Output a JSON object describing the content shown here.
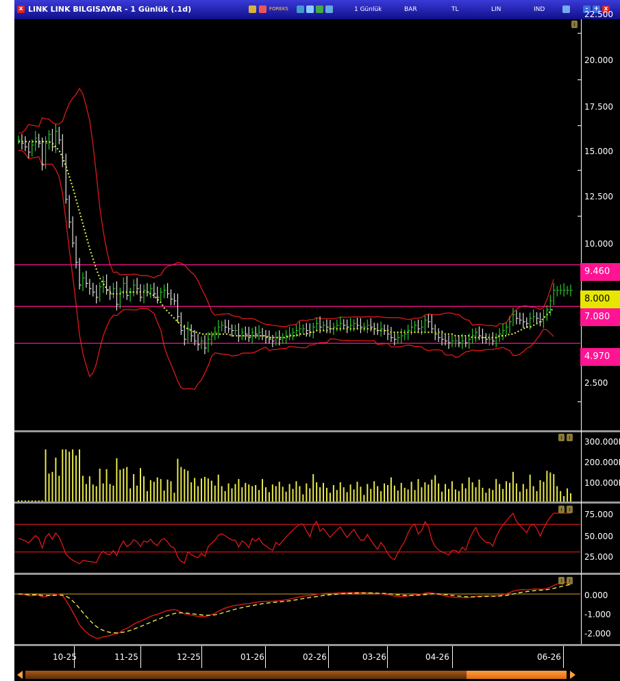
{
  "window": {
    "title": "LINK LINK BILGISAYAR - 1 Günlük (.1d)",
    "menu": [
      "1 Günlük",
      "BAR",
      "TL",
      "LIN",
      "IND"
    ],
    "foreks_label": "FOREKS"
  },
  "date_axis": [
    "10-25",
    "11-25",
    "12-25",
    "01-26",
    "02-26",
    "03-26",
    "04-26",
    "06-26"
  ],
  "price_panel": {
    "scale": [
      "22.500",
      "20.000",
      "17.500",
      "15.000",
      "12.500",
      "10.000",
      "2.500"
    ],
    "levels": [
      {
        "value": "9.460",
        "color": "#ff1493"
      },
      {
        "value": "7.080",
        "color": "#ff1493"
      },
      {
        "value": "4.970",
        "color": "#ff1493"
      }
    ],
    "last_price": {
      "value": "8.000",
      "color": "#ffff00"
    }
  },
  "volume_panel": {
    "scale": [
      "300.000M",
      "200.000M",
      "100.000M"
    ]
  },
  "rsi_panel": {
    "scale": [
      "75.000",
      "50.000",
      "25.000"
    ],
    "levels": [
      70,
      30
    ]
  },
  "macd_panel": {
    "scale": [
      "0.000",
      "-1.000",
      "-2.000"
    ]
  },
  "chart_data": {
    "type": "line",
    "ylim": [
      0,
      23.5
    ],
    "x_count": 164,
    "series": [
      {
        "values": [
          16.6,
          16.4,
          16.2,
          15.9,
          16.3,
          16.7,
          16.4,
          15.2,
          16.4,
          16.9,
          16.2,
          17.1,
          16.6,
          15.4,
          13.2,
          11.9,
          10.7,
          9.6,
          8.3,
          8.7,
          8.4,
          8.1,
          7.9,
          7.6,
          8.2,
          8.5,
          8.0,
          7.8,
          8.1,
          7.2,
          7.9,
          8.4,
          7.7,
          7.9,
          8.3,
          8.1,
          7.6,
          8.0,
          7.9,
          8.1,
          7.8,
          7.6,
          7.9,
          8.0,
          7.8,
          7.5,
          7.4,
          6.5,
          5.7,
          5.2,
          5.8,
          5.4,
          5.1,
          4.9,
          5.1,
          4.7,
          5.2,
          5.4,
          5.6,
          5.9,
          6.0,
          5.9,
          5.8,
          5.7,
          5.7,
          5.4,
          5.6,
          5.5,
          5.3,
          5.6,
          5.5,
          5.6,
          5.4,
          5.3,
          5.2,
          5.1,
          5.3,
          5.2,
          5.3,
          5.4,
          5.5,
          5.6,
          5.7,
          5.8,
          5.8,
          5.7,
          5.6,
          5.9,
          6.1,
          5.9,
          6.0,
          5.9,
          5.8,
          5.9,
          6.0,
          6.1,
          6.0,
          5.9,
          6.0,
          6.1,
          6.0,
          5.9,
          5.9,
          6.0,
          5.9,
          5.8,
          5.7,
          5.8,
          5.7,
          5.5,
          5.3,
          5.2,
          5.3,
          5.4,
          5.5,
          5.7,
          5.9,
          6.0,
          5.8,
          5.9,
          6.3,
          6.2,
          5.8,
          5.5,
          5.3,
          5.2,
          5.1,
          5.0,
          5.1,
          5.1,
          5.0,
          5.1,
          5.0,
          5.2,
          5.4,
          5.6,
          5.4,
          5.3,
          5.2,
          5.2,
          5.1,
          5.3,
          5.5,
          5.7,
          5.9,
          6.2,
          6.6,
          6.4,
          6.3,
          6.2,
          6.1,
          6.4,
          6.5,
          6.4,
          6.2,
          6.5,
          6.9,
          7.4,
          8.0,
          8.0,
          8.0,
          8.0,
          8.0,
          8.0
        ]
      },
      {
        "values": [
          16.5,
          16.5,
          16.5,
          16.5,
          16.5,
          16.5,
          16.5,
          16.5,
          16.5,
          16.5,
          16.4,
          16.2,
          16.0,
          15.6,
          15.1,
          14.5,
          13.9,
          13.2,
          12.5,
          11.8,
          11.1,
          10.4,
          9.8,
          9.2,
          8.7,
          8.4,
          8.1,
          7.9,
          7.8,
          7.8,
          7.8,
          7.9,
          7.9,
          7.9,
          7.9,
          7.9,
          7.9,
          7.9,
          7.9,
          7.8,
          7.7,
          7.5,
          7.3,
          7.0,
          6.8,
          6.6,
          6.4,
          6.2,
          6.0,
          5.9,
          5.8,
          5.7,
          5.6,
          5.6,
          5.5,
          5.5,
          5.5,
          5.5,
          5.5,
          5.5,
          5.5,
          5.5,
          5.5,
          5.4,
          5.4,
          5.4,
          5.4,
          5.4,
          5.4,
          5.4,
          5.4,
          5.4,
          5.4,
          5.4,
          5.3,
          5.3,
          5.3,
          5.3,
          5.3,
          5.3,
          5.4,
          5.4,
          5.4,
          5.5,
          5.5,
          5.5,
          5.6,
          5.6,
          5.7,
          5.7,
          5.7,
          5.7,
          5.8,
          5.8,
          5.8,
          5.8,
          5.8,
          5.8,
          5.8,
          5.8,
          5.8,
          5.8,
          5.8,
          5.8,
          5.8,
          5.8,
          5.7,
          5.7,
          5.7,
          5.7,
          5.6,
          5.6,
          5.6,
          5.6,
          5.6,
          5.6,
          5.6,
          5.6,
          5.6,
          5.6,
          5.6,
          5.6,
          5.6,
          5.6,
          5.6,
          5.6,
          5.5,
          5.5,
          5.5,
          5.4,
          5.4,
          5.4,
          5.4,
          5.4,
          5.3,
          5.3,
          5.3,
          5.3,
          5.3,
          5.3,
          5.3,
          5.3,
          5.4,
          5.4,
          5.4,
          5.5,
          5.5,
          5.6,
          5.7,
          5.8,
          5.9,
          5.9,
          6.0,
          6.1,
          6.2,
          6.4,
          6.6,
          6.8,
          7.0
        ]
      }
    ]
  }
}
